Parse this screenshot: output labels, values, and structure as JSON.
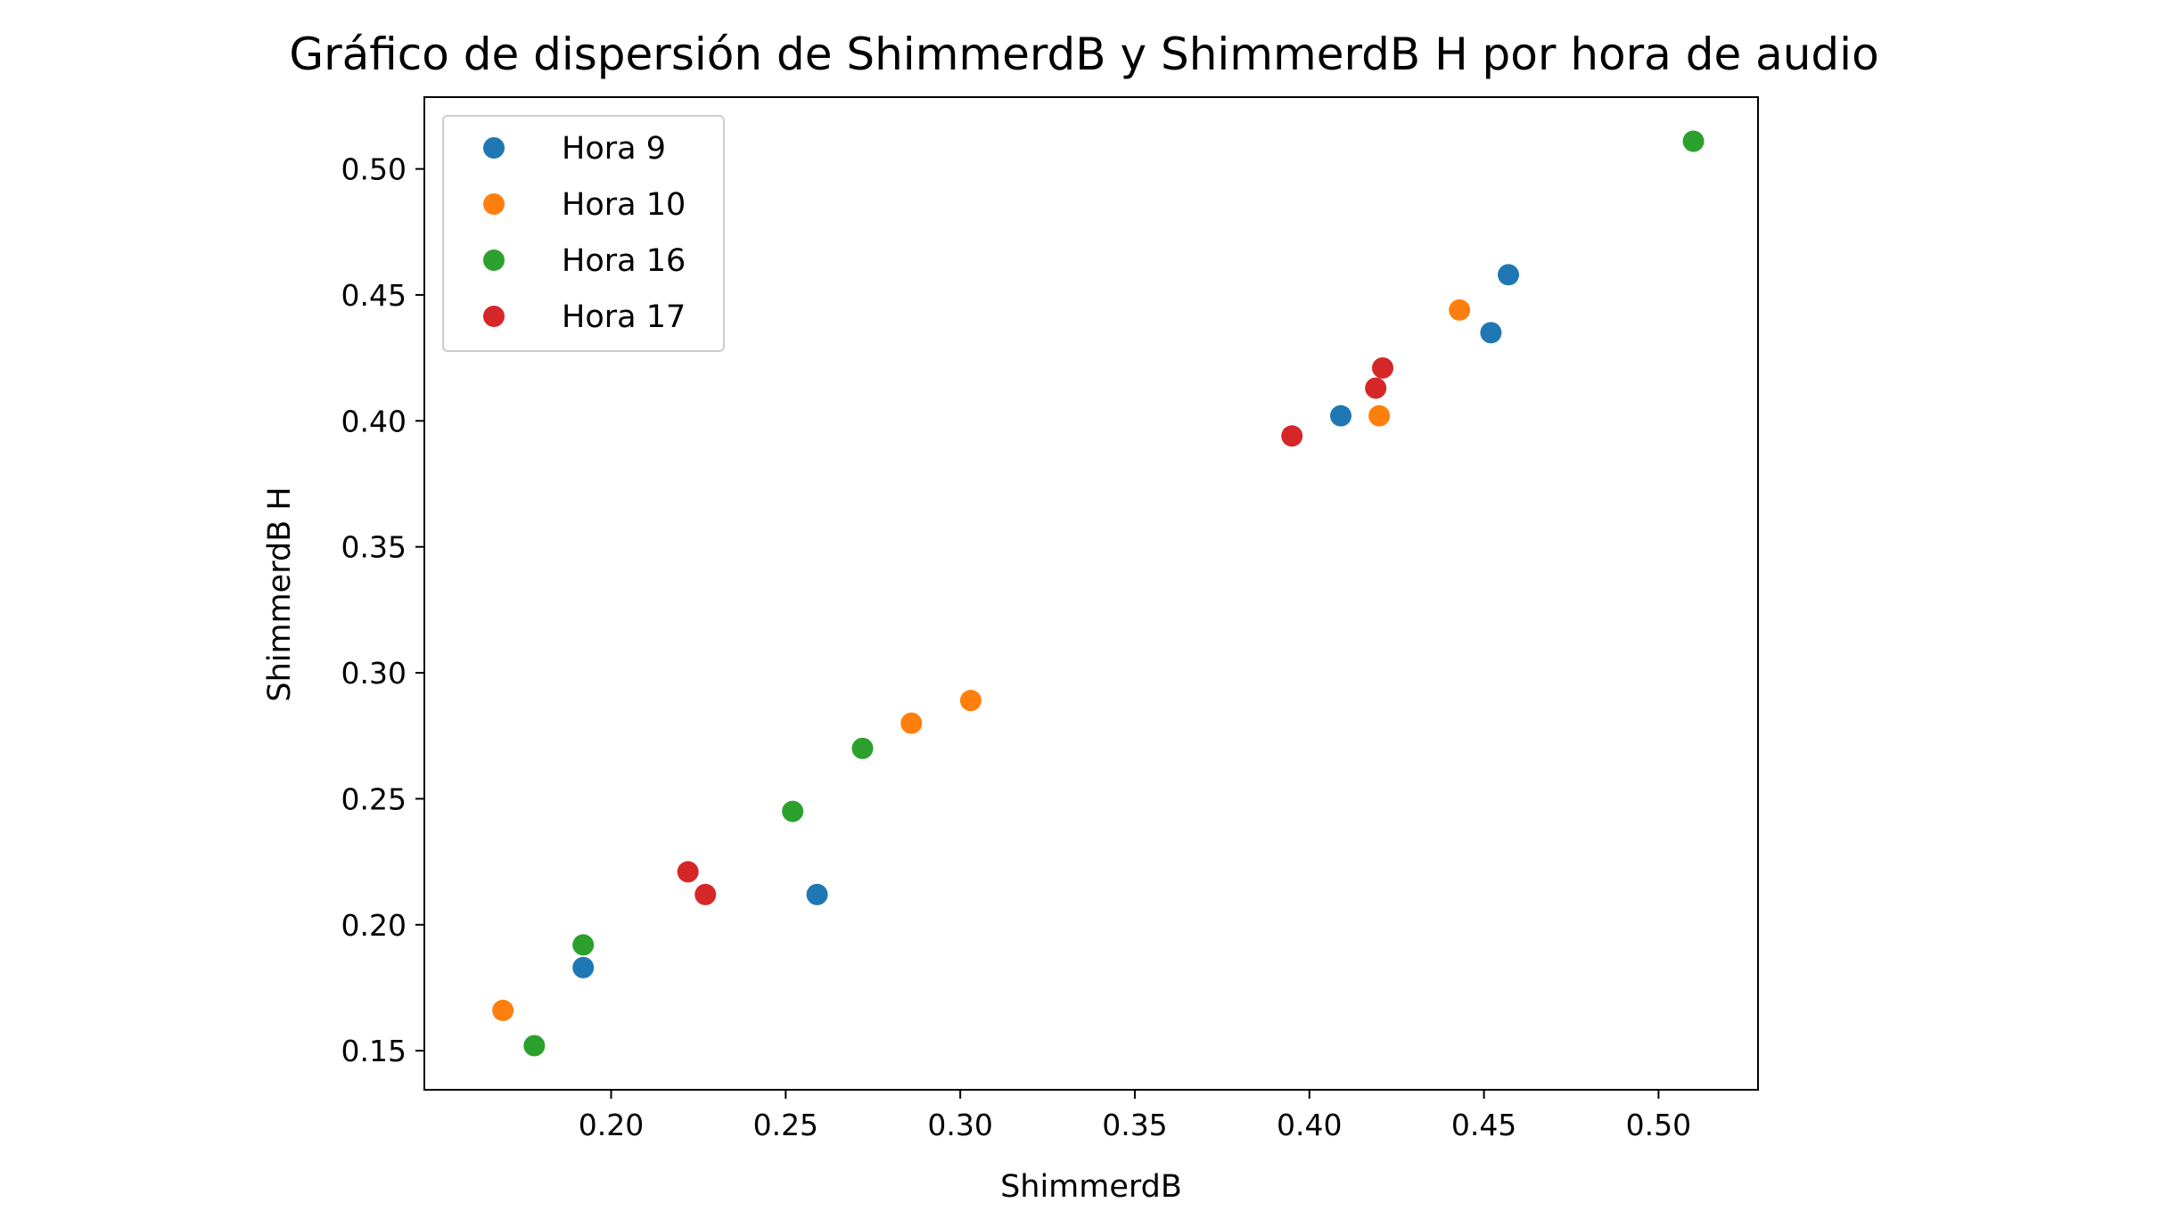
{
  "chart_data": {
    "type": "scatter",
    "title": "Gráfico de dispersión de ShimmerdB y ShimmerdB H por hora de audio",
    "xlabel": "ShimmerdB",
    "ylabel": "ShimmerdB H",
    "xlim": [
      0.1465,
      0.5285
    ],
    "ylim": [
      0.1345,
      0.5285
    ],
    "xticks": [
      "0.20",
      "0.25",
      "0.30",
      "0.35",
      "0.40",
      "0.45",
      "0.50"
    ],
    "yticks": [
      "0.15",
      "0.20",
      "0.25",
      "0.30",
      "0.35",
      "0.40",
      "0.45",
      "0.50"
    ],
    "grid": false,
    "legend_position": "top-left",
    "series": [
      {
        "name": "Hora 9",
        "color": "#1f77b4",
        "x": [
          0.192,
          0.259,
          0.409,
          0.452,
          0.457
        ],
        "y": [
          0.183,
          0.212,
          0.402,
          0.435,
          0.458
        ]
      },
      {
        "name": "Hora 10",
        "color": "#ff7f0e",
        "x": [
          0.169,
          0.286,
          0.303,
          0.42,
          0.443
        ],
        "y": [
          0.166,
          0.28,
          0.289,
          0.402,
          0.444
        ]
      },
      {
        "name": "Hora 16",
        "color": "#2ca02c",
        "x": [
          0.178,
          0.192,
          0.252,
          0.272,
          0.51
        ],
        "y": [
          0.152,
          0.192,
          0.245,
          0.27,
          0.511
        ]
      },
      {
        "name": "Hora 17",
        "color": "#d62728",
        "x": [
          0.222,
          0.227,
          0.395,
          0.419,
          0.421
        ],
        "y": [
          0.221,
          0.212,
          0.394,
          0.413,
          0.421
        ]
      }
    ]
  }
}
